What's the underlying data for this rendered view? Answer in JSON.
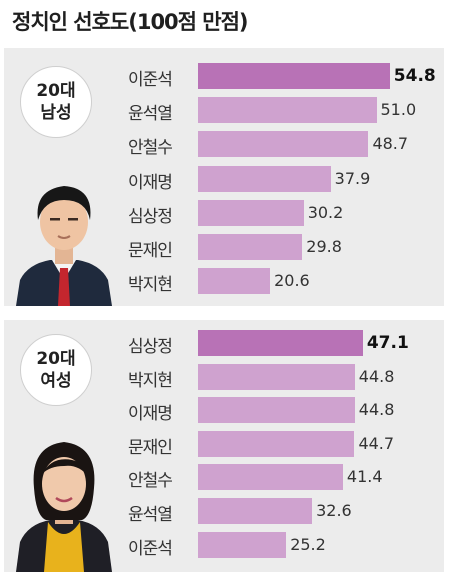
{
  "title": "정치인 선호도(100점 만점)",
  "chart_data": [
    {
      "type": "bar",
      "orientation": "horizontal",
      "group_label": [
        "20대",
        "남성"
      ],
      "categories": [
        "이준석",
        "윤석열",
        "안철수",
        "이재명",
        "심상정",
        "문재인",
        "박지현"
      ],
      "values": [
        54.8,
        51.0,
        48.7,
        37.9,
        30.2,
        29.8,
        20.6
      ],
      "value_labels": [
        "54.8",
        "51.0",
        "48.7",
        "37.9",
        "30.2",
        "29.8",
        "20.6"
      ],
      "xlim": [
        0,
        100
      ],
      "colors": {
        "bar": "#cfa2cf",
        "top_bar": "#b872b6"
      }
    },
    {
      "type": "bar",
      "orientation": "horizontal",
      "group_label": [
        "20대",
        "여성"
      ],
      "categories": [
        "심상정",
        "박지현",
        "이재명",
        "문재인",
        "안철수",
        "윤석열",
        "이준석"
      ],
      "values": [
        47.1,
        44.8,
        44.8,
        44.7,
        41.4,
        32.6,
        25.2
      ],
      "value_labels": [
        "47.1",
        "44.8",
        "44.8",
        "44.7",
        "41.4",
        "32.6",
        "25.2"
      ],
      "xlim": [
        0,
        100
      ],
      "colors": {
        "bar": "#cfa2cf",
        "top_bar": "#b872b6"
      }
    }
  ]
}
